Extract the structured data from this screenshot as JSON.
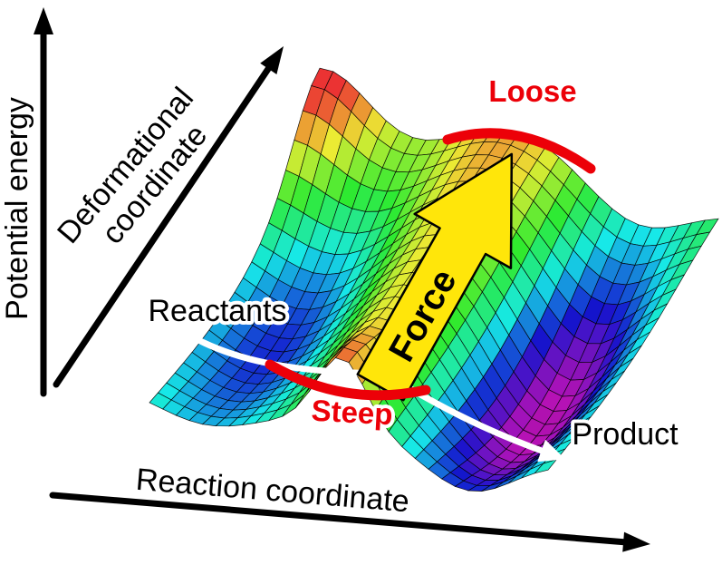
{
  "labels": {
    "potential_energy": "Potential energy",
    "deformational_line1": "Deformational",
    "deformational_line2": "coordinate",
    "reaction_coordinate": "Reaction coordinate",
    "reactants": "Reactants",
    "product": "Product",
    "force": "Force",
    "steep": "Steep",
    "loose": "Loose"
  },
  "colors": {
    "red": "#ec0008",
    "yellow": "#ffe60a",
    "black": "#000000",
    "white": "#ffffff"
  },
  "icons": {
    "axis_arrowhead": "filled-triangle",
    "reaction_path_arrowhead": "filled-triangle"
  }
}
